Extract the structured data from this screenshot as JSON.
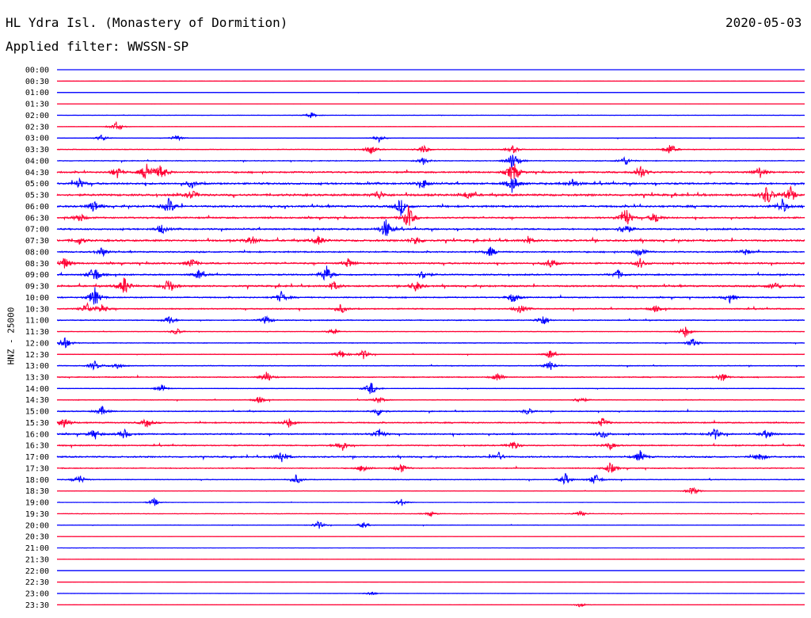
{
  "header": {
    "station_title": "HL Ydra Isl. (Monastery of Dormition)",
    "date": "2020-05-03",
    "filter_label": "Applied filter: WWSSN-SP"
  },
  "channel_label": "HNZ - 25000",
  "chart_data": {
    "type": "line",
    "title": "HL Ydra Isl. (Monastery of Dormition)",
    "subtitle": "Applied filter: WWSSN-SP",
    "ylabel": "HNZ - 25000",
    "xlabel": "",
    "row_interval_minutes": 30,
    "colors": {
      "blue": "#0000ff",
      "red": "#ff0033"
    },
    "row_colors": [
      "blue",
      "red"
    ],
    "rows": [
      {
        "time": "00:00",
        "activity": 0.02,
        "events": []
      },
      {
        "time": "00:30",
        "activity": 0.06,
        "events": []
      },
      {
        "time": "01:00",
        "activity": 0.08,
        "events": []
      },
      {
        "time": "01:30",
        "activity": 0.02,
        "events": []
      },
      {
        "time": "02:00",
        "activity": 0.08,
        "events": [
          [
            0.34,
            0.25
          ]
        ]
      },
      {
        "time": "02:30",
        "activity": 0.1,
        "events": [
          [
            0.08,
            0.45
          ]
        ]
      },
      {
        "time": "03:00",
        "activity": 0.12,
        "events": [
          [
            0.06,
            0.3
          ],
          [
            0.16,
            0.3
          ],
          [
            0.43,
            0.35
          ]
        ]
      },
      {
        "time": "03:30",
        "activity": 0.2,
        "events": [
          [
            0.42,
            0.4
          ],
          [
            0.49,
            0.35
          ],
          [
            0.61,
            0.3
          ],
          [
            0.82,
            0.5
          ]
        ]
      },
      {
        "time": "04:00",
        "activity": 0.22,
        "events": [
          [
            0.49,
            0.3
          ],
          [
            0.61,
            0.9
          ],
          [
            0.76,
            0.4
          ]
        ]
      },
      {
        "time": "04:30",
        "activity": 0.4,
        "events": [
          [
            0.08,
            0.5
          ],
          [
            0.12,
            0.9
          ],
          [
            0.14,
            0.7
          ],
          [
            0.61,
            1.0
          ],
          [
            0.78,
            0.7
          ],
          [
            0.94,
            0.5
          ]
        ]
      },
      {
        "time": "05:00",
        "activity": 0.45,
        "events": [
          [
            0.03,
            0.4
          ],
          [
            0.18,
            0.35
          ],
          [
            0.49,
            0.4
          ],
          [
            0.61,
            0.7
          ],
          [
            0.69,
            0.4
          ]
        ]
      },
      {
        "time": "05:30",
        "activity": 0.5,
        "events": [
          [
            0.18,
            0.4
          ],
          [
            0.43,
            0.4
          ],
          [
            0.55,
            0.35
          ],
          [
            0.95,
            0.9
          ],
          [
            0.98,
            0.6
          ]
        ]
      },
      {
        "time": "06:00",
        "activity": 0.45,
        "events": [
          [
            0.05,
            0.5
          ],
          [
            0.15,
            0.7
          ],
          [
            0.46,
            0.7
          ],
          [
            0.97,
            0.6
          ]
        ]
      },
      {
        "time": "06:30",
        "activity": 0.4,
        "events": [
          [
            0.03,
            0.4
          ],
          [
            0.47,
            1.0
          ],
          [
            0.76,
            1.0
          ],
          [
            0.8,
            0.5
          ]
        ]
      },
      {
        "time": "07:00",
        "activity": 0.4,
        "events": [
          [
            0.14,
            0.4
          ],
          [
            0.44,
            0.9
          ],
          [
            0.76,
            0.6
          ]
        ]
      },
      {
        "time": "07:30",
        "activity": 0.45,
        "events": [
          [
            0.03,
            0.3
          ],
          [
            0.26,
            0.4
          ],
          [
            0.35,
            0.4
          ],
          [
            0.48,
            0.4
          ],
          [
            0.63,
            0.3
          ]
        ]
      },
      {
        "time": "08:00",
        "activity": 0.35,
        "events": [
          [
            0.06,
            0.4
          ],
          [
            0.58,
            0.4
          ],
          [
            0.78,
            0.4
          ],
          [
            0.92,
            0.3
          ]
        ]
      },
      {
        "time": "08:30",
        "activity": 0.4,
        "events": [
          [
            0.01,
            0.5
          ],
          [
            0.18,
            0.4
          ],
          [
            0.39,
            0.4
          ],
          [
            0.66,
            0.4
          ],
          [
            0.78,
            0.4
          ]
        ]
      },
      {
        "time": "09:00",
        "activity": 0.35,
        "events": [
          [
            0.05,
            0.8
          ],
          [
            0.19,
            0.4
          ],
          [
            0.36,
            0.8
          ],
          [
            0.49,
            0.4
          ],
          [
            0.75,
            0.4
          ]
        ]
      },
      {
        "time": "09:30",
        "activity": 0.4,
        "events": [
          [
            0.09,
            0.8
          ],
          [
            0.15,
            0.7
          ],
          [
            0.37,
            0.4
          ],
          [
            0.48,
            0.5
          ],
          [
            0.96,
            0.4
          ]
        ]
      },
      {
        "time": "10:00",
        "activity": 0.3,
        "events": [
          [
            0.05,
            0.9
          ],
          [
            0.3,
            0.5
          ],
          [
            0.61,
            0.5
          ],
          [
            0.9,
            0.4
          ]
        ]
      },
      {
        "time": "10:30",
        "activity": 0.3,
        "events": [
          [
            0.04,
            0.5
          ],
          [
            0.06,
            0.4
          ],
          [
            0.38,
            0.4
          ],
          [
            0.62,
            0.4
          ],
          [
            0.8,
            0.3
          ]
        ]
      },
      {
        "time": "11:00",
        "activity": 0.25,
        "events": [
          [
            0.15,
            0.4
          ],
          [
            0.28,
            0.4
          ],
          [
            0.65,
            0.5
          ]
        ]
      },
      {
        "time": "11:30",
        "activity": 0.12,
        "events": [
          [
            0.16,
            0.3
          ],
          [
            0.37,
            0.3
          ],
          [
            0.84,
            0.5
          ]
        ]
      },
      {
        "time": "12:00",
        "activity": 0.2,
        "events": [
          [
            0.01,
            0.6
          ],
          [
            0.85,
            0.4
          ]
        ]
      },
      {
        "time": "12:30",
        "activity": 0.15,
        "events": [
          [
            0.38,
            0.4
          ],
          [
            0.41,
            0.4
          ],
          [
            0.66,
            0.4
          ]
        ]
      },
      {
        "time": "13:00",
        "activity": 0.2,
        "events": [
          [
            0.05,
            0.4
          ],
          [
            0.08,
            0.3
          ],
          [
            0.66,
            0.4
          ]
        ]
      },
      {
        "time": "13:30",
        "activity": 0.25,
        "events": [
          [
            0.28,
            0.5
          ],
          [
            0.59,
            0.4
          ],
          [
            0.89,
            0.4
          ]
        ]
      },
      {
        "time": "14:00",
        "activity": 0.15,
        "events": [
          [
            0.42,
            0.6
          ],
          [
            0.14,
            0.3
          ]
        ]
      },
      {
        "time": "14:30",
        "activity": 0.18,
        "events": [
          [
            0.27,
            0.3
          ],
          [
            0.43,
            0.3
          ],
          [
            0.7,
            0.3
          ]
        ]
      },
      {
        "time": "15:00",
        "activity": 0.25,
        "events": [
          [
            0.06,
            0.4
          ],
          [
            0.43,
            0.4
          ],
          [
            0.63,
            0.3
          ]
        ]
      },
      {
        "time": "15:30",
        "activity": 0.3,
        "events": [
          [
            0.01,
            0.5
          ],
          [
            0.12,
            0.4
          ],
          [
            0.31,
            0.4
          ],
          [
            0.73,
            0.4
          ]
        ]
      },
      {
        "time": "16:00",
        "activity": 0.35,
        "events": [
          [
            0.05,
            0.4
          ],
          [
            0.09,
            0.4
          ],
          [
            0.43,
            0.5
          ],
          [
            0.73,
            0.4
          ],
          [
            0.88,
            0.5
          ],
          [
            0.95,
            0.4
          ]
        ]
      },
      {
        "time": "16:30",
        "activity": 0.3,
        "events": [
          [
            0.38,
            0.6
          ],
          [
            0.61,
            0.4
          ],
          [
            0.74,
            0.3
          ]
        ]
      },
      {
        "time": "17:00",
        "activity": 0.35,
        "events": [
          [
            0.3,
            0.6
          ],
          [
            0.59,
            0.4
          ],
          [
            0.78,
            0.5
          ],
          [
            0.94,
            0.4
          ]
        ]
      },
      {
        "time": "17:30",
        "activity": 0.25,
        "events": [
          [
            0.41,
            0.4
          ],
          [
            0.46,
            0.4
          ],
          [
            0.74,
            0.5
          ]
        ]
      },
      {
        "time": "18:00",
        "activity": 0.2,
        "events": [
          [
            0.03,
            0.4
          ],
          [
            0.32,
            0.4
          ],
          [
            0.68,
            0.5
          ],
          [
            0.72,
            0.5
          ]
        ]
      },
      {
        "time": "18:30",
        "activity": 0.12,
        "events": [
          [
            0.85,
            0.4
          ]
        ]
      },
      {
        "time": "19:00",
        "activity": 0.08,
        "events": [
          [
            0.13,
            0.35
          ],
          [
            0.46,
            0.35
          ]
        ]
      },
      {
        "time": "19:30",
        "activity": 0.15,
        "events": [
          [
            0.5,
            0.2
          ],
          [
            0.7,
            0.25
          ]
        ]
      },
      {
        "time": "20:00",
        "activity": 0.12,
        "events": [
          [
            0.35,
            0.35
          ],
          [
            0.41,
            0.25
          ]
        ]
      },
      {
        "time": "20:30",
        "activity": 0.04,
        "events": []
      },
      {
        "time": "21:00",
        "activity": 0.06,
        "events": []
      },
      {
        "time": "21:30",
        "activity": 0.05,
        "events": []
      },
      {
        "time": "22:00",
        "activity": 0.03,
        "events": []
      },
      {
        "time": "22:30",
        "activity": 0.03,
        "events": []
      },
      {
        "time": "23:00",
        "activity": 0.04,
        "events": [
          [
            0.42,
            0.2
          ]
        ]
      },
      {
        "time": "23:30",
        "activity": 0.03,
        "events": [
          [
            0.7,
            0.2
          ]
        ]
      }
    ]
  }
}
